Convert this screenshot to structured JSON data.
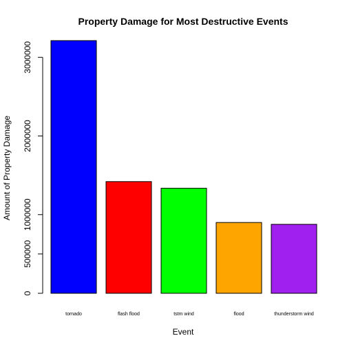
{
  "chart_data": {
    "type": "bar",
    "title": "Property Damage for Most Destructive Events",
    "xlabel": "Event",
    "ylabel": "Amount of Property Damage",
    "categories": [
      "tornado",
      "flash flood",
      "tstm wind",
      "flood",
      "thunderstorm wind"
    ],
    "values": [
      3212258,
      1420125,
      1335966,
      899938,
      876844
    ],
    "colors": [
      "#0000FF",
      "#FF0000",
      "#00FF00",
      "#FFA500",
      "#A020F0"
    ],
    "ylim": [
      0,
      3212258
    ],
    "yticks": [
      0,
      500000,
      1000000,
      2000000,
      3000000
    ],
    "grid": false,
    "legend": "none"
  }
}
